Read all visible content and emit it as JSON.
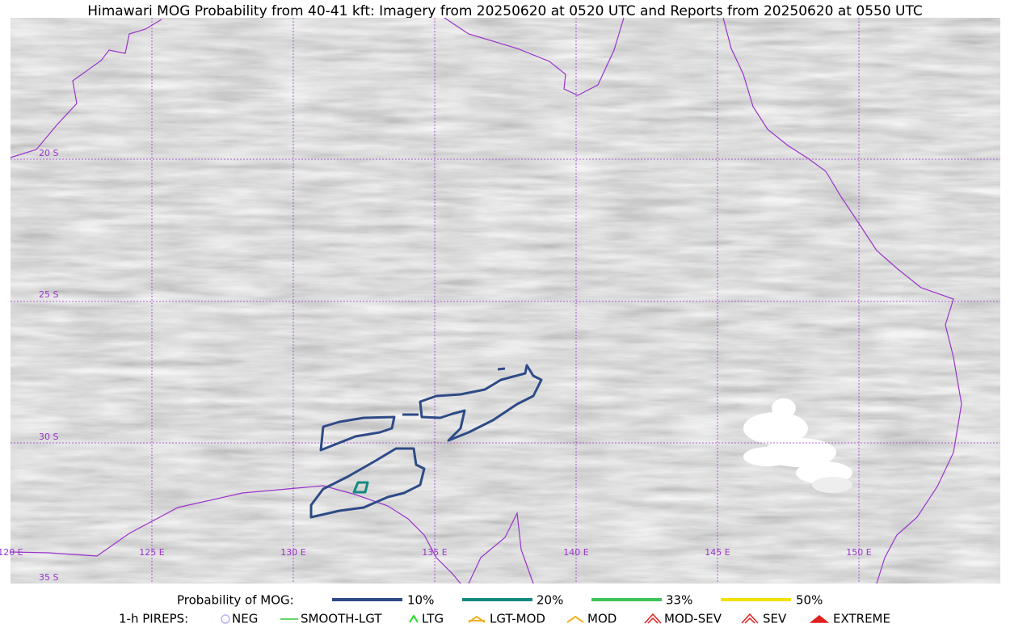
{
  "header": {
    "title": "Himawari MOG Probability from 40-41 kft: Imagery from 20250620 at 0520 UTC and Reports from 20250620 at 0550 UTC"
  },
  "map": {
    "lat_labels": [
      "20 S",
      "25 S",
      "30 S",
      "35 S"
    ],
    "lon_labels": [
      "120 E",
      "125 E",
      "130 E",
      "135 E",
      "140 E",
      "145 E",
      "150 E"
    ]
  },
  "legend": {
    "probability": {
      "label": "Probability of MOG:",
      "items": [
        {
          "label": "10%",
          "color": "#2e4a87"
        },
        {
          "label": "20%",
          "color": "#138a80"
        },
        {
          "label": "33%",
          "color": "#3cc45a"
        },
        {
          "label": "50%",
          "color": "#f5e000"
        }
      ]
    },
    "pireps": {
      "label": "1-h PIREPS:",
      "items": [
        {
          "label": "NEG",
          "color": "#b8b8f0"
        },
        {
          "label": "SMOOTH-LGT",
          "color": "#33cc33"
        },
        {
          "label": "LTG",
          "color": "#22dd22"
        },
        {
          "label": "LGT-MOD",
          "color": "#f0b020"
        },
        {
          "label": "MOD",
          "color": "#f0b020"
        },
        {
          "label": "MOD-SEV",
          "color": "#e02020"
        },
        {
          "label": "SEV",
          "color": "#e02020"
        },
        {
          "label": "EXTREME",
          "color": "#e02020"
        }
      ]
    }
  }
}
